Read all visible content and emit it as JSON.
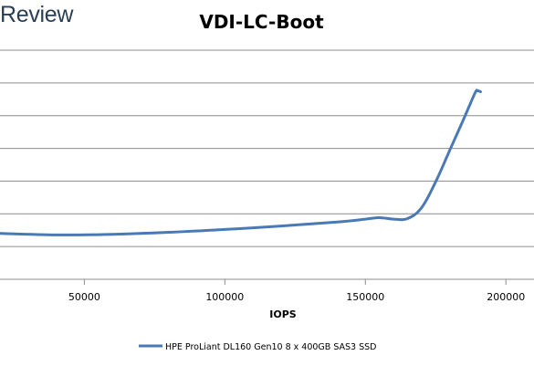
{
  "brand": {
    "text": "Review"
  },
  "chart_data": {
    "type": "line",
    "title": "VDI-LC-Boot",
    "xlabel": "IOPS",
    "ylabel": "",
    "xlim": [
      20000,
      210000
    ],
    "x_ticks": [
      50000,
      100000,
      150000,
      200000
    ],
    "x_tick_labels": [
      "50000",
      "100000",
      "150000",
      "200000"
    ],
    "y_gridline_count": 7,
    "y_tick_labels_visible": false,
    "ylim": [
      0,
      8
    ],
    "grid": true,
    "legend_position": "bottom",
    "series": [
      {
        "name": "HPE ProLiant DL160 Gen10 8 x 400GB SAS3 SSD",
        "color": "#4a7ab5",
        "x": [
          20000,
          40000,
          60000,
          80000,
          100000,
          120000,
          140000,
          150000,
          155000,
          160000,
          165000,
          170000,
          175000,
          180000,
          185000,
          189000,
          190000,
          191000
        ],
        "y": [
          1.6,
          1.55,
          1.57,
          1.64,
          1.74,
          1.86,
          2.0,
          2.1,
          2.15,
          2.1,
          2.12,
          2.5,
          3.4,
          4.5,
          5.6,
          6.5,
          6.58,
          6.55
        ]
      }
    ]
  }
}
